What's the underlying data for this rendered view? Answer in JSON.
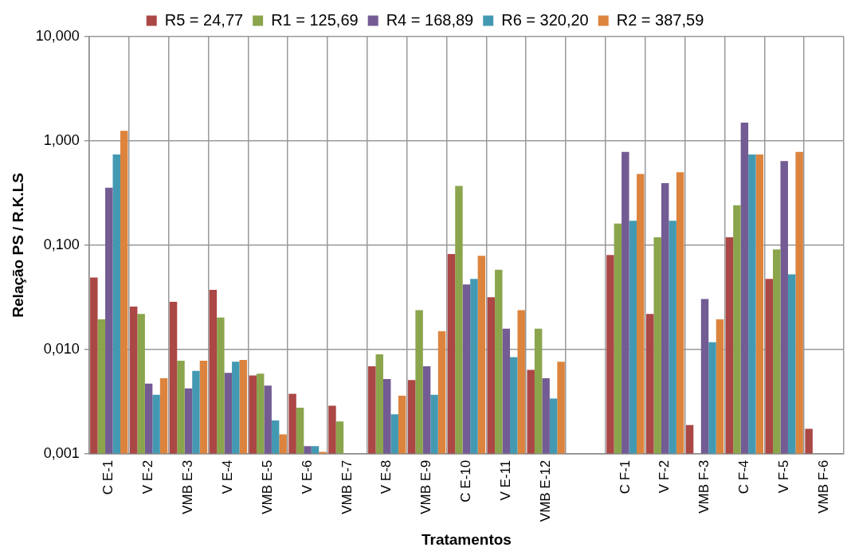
{
  "chart_data": {
    "type": "bar",
    "xlabel": "Tratamentos",
    "ylabel": "Relação PS / R.K.LS",
    "categories": [
      "C E-1",
      "V E-2",
      "VMB E-3",
      "V E-4",
      "VMB E-5",
      "V E-6",
      "VMB E-7",
      "V E-8",
      "VMB E-9",
      "C E-10",
      "V E-11",
      "VMB E-12",
      null,
      "C F-1",
      "V F-2",
      "VMB F-3",
      "C F-4",
      "V F-5",
      "VMB F-6"
    ],
    "series": [
      {
        "name": "R5 = 24,77",
        "color": "#ab4745",
        "values": [
          0.049,
          0.0258,
          0.0286,
          0.0372,
          0.00562,
          0.00375,
          0.00288,
          0.00689,
          0.00508,
          0.0822,
          0.0316,
          0.00635,
          null,
          0.0805,
          0.0219,
          0.00188,
          0.119,
          0.0475,
          0.00173
        ]
      },
      {
        "name": "R1 = 125,69",
        "color": "#8ba54d",
        "values": [
          0.0194,
          0.0219,
          0.00778,
          0.0202,
          0.00586,
          0.00276,
          0.00204,
          0.00897,
          0.0238,
          0.37,
          0.0582,
          0.0158,
          null,
          0.161,
          0.119,
          null,
          0.241,
          0.091,
          null
        ]
      },
      {
        "name": "R4 = 168,89",
        "color": "#735b93",
        "values": [
          0.355,
          0.00469,
          0.00423,
          0.00597,
          0.0045,
          0.00118,
          null,
          0.00519,
          0.00689,
          0.042,
          0.0158,
          0.0053,
          null,
          0.783,
          0.393,
          0.0304,
          1.5,
          0.64,
          null
        ]
      },
      {
        "name": "R6 = 320,20",
        "color": "#4499b2",
        "values": [
          0.74,
          0.00367,
          0.00622,
          0.00762,
          0.00208,
          0.00118,
          null,
          0.00239,
          0.00367,
          0.0475,
          0.00843,
          0.00338,
          null,
          0.171,
          0.171,
          0.0117,
          0.74,
          0.0526,
          null
        ]
      },
      {
        "name": "R2 = 387,59",
        "color": "#dc843e",
        "values": [
          1.25,
          0.0053,
          0.00778,
          0.00794,
          0.00153,
          0.00104,
          null,
          0.0036,
          0.0149,
          0.0789,
          0.0238,
          0.00762,
          null,
          0.481,
          0.501,
          0.0194,
          0.74,
          0.783,
          null
        ]
      }
    ],
    "log": "y",
    "ylim": [
      0.001,
      10
    ],
    "yticks": [
      {
        "value": 0.001,
        "label": "0,001"
      },
      {
        "value": 0.01,
        "label": "0,010"
      },
      {
        "value": 0.1,
        "label": "0,100"
      },
      {
        "value": 1,
        "label": "1,000"
      },
      {
        "value": 10,
        "label": "10,000"
      }
    ],
    "grid": true,
    "legend": "top"
  }
}
